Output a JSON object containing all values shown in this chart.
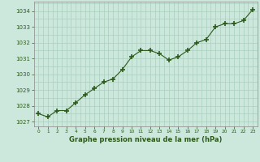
{
  "x": [
    0,
    1,
    2,
    3,
    4,
    5,
    6,
    7,
    8,
    9,
    10,
    11,
    12,
    13,
    14,
    15,
    16,
    17,
    18,
    19,
    20,
    21,
    22,
    23
  ],
  "y": [
    1027.5,
    1027.3,
    1027.7,
    1027.7,
    1028.2,
    1028.7,
    1029.1,
    1029.5,
    1029.7,
    1030.3,
    1031.1,
    1031.5,
    1031.5,
    1031.3,
    1030.9,
    1031.1,
    1031.5,
    1032.0,
    1032.2,
    1033.0,
    1033.2,
    1033.2,
    1033.4,
    1034.1
  ],
  "line_color": "#2d5a1b",
  "marker_color": "#2d5a1b",
  "bg_color": "#cce8dc",
  "grid_color_major": "#b8d8cc",
  "grid_color_minor": "#c8e4d8",
  "xlabel": "Graphe pression niveau de la mer (hPa)",
  "xlabel_color": "#2d5a1b",
  "ylabel_ticks": [
    1027,
    1028,
    1029,
    1030,
    1031,
    1032,
    1033,
    1034
  ],
  "xlim": [
    -0.5,
    23.5
  ],
  "ylim": [
    1026.7,
    1034.6
  ],
  "xtick_labels": [
    "0",
    "1",
    "2",
    "3",
    "4",
    "5",
    "6",
    "7",
    "8",
    "9",
    "10",
    "11",
    "12",
    "13",
    "14",
    "15",
    "16",
    "17",
    "18",
    "19",
    "20",
    "21",
    "22",
    "23"
  ]
}
